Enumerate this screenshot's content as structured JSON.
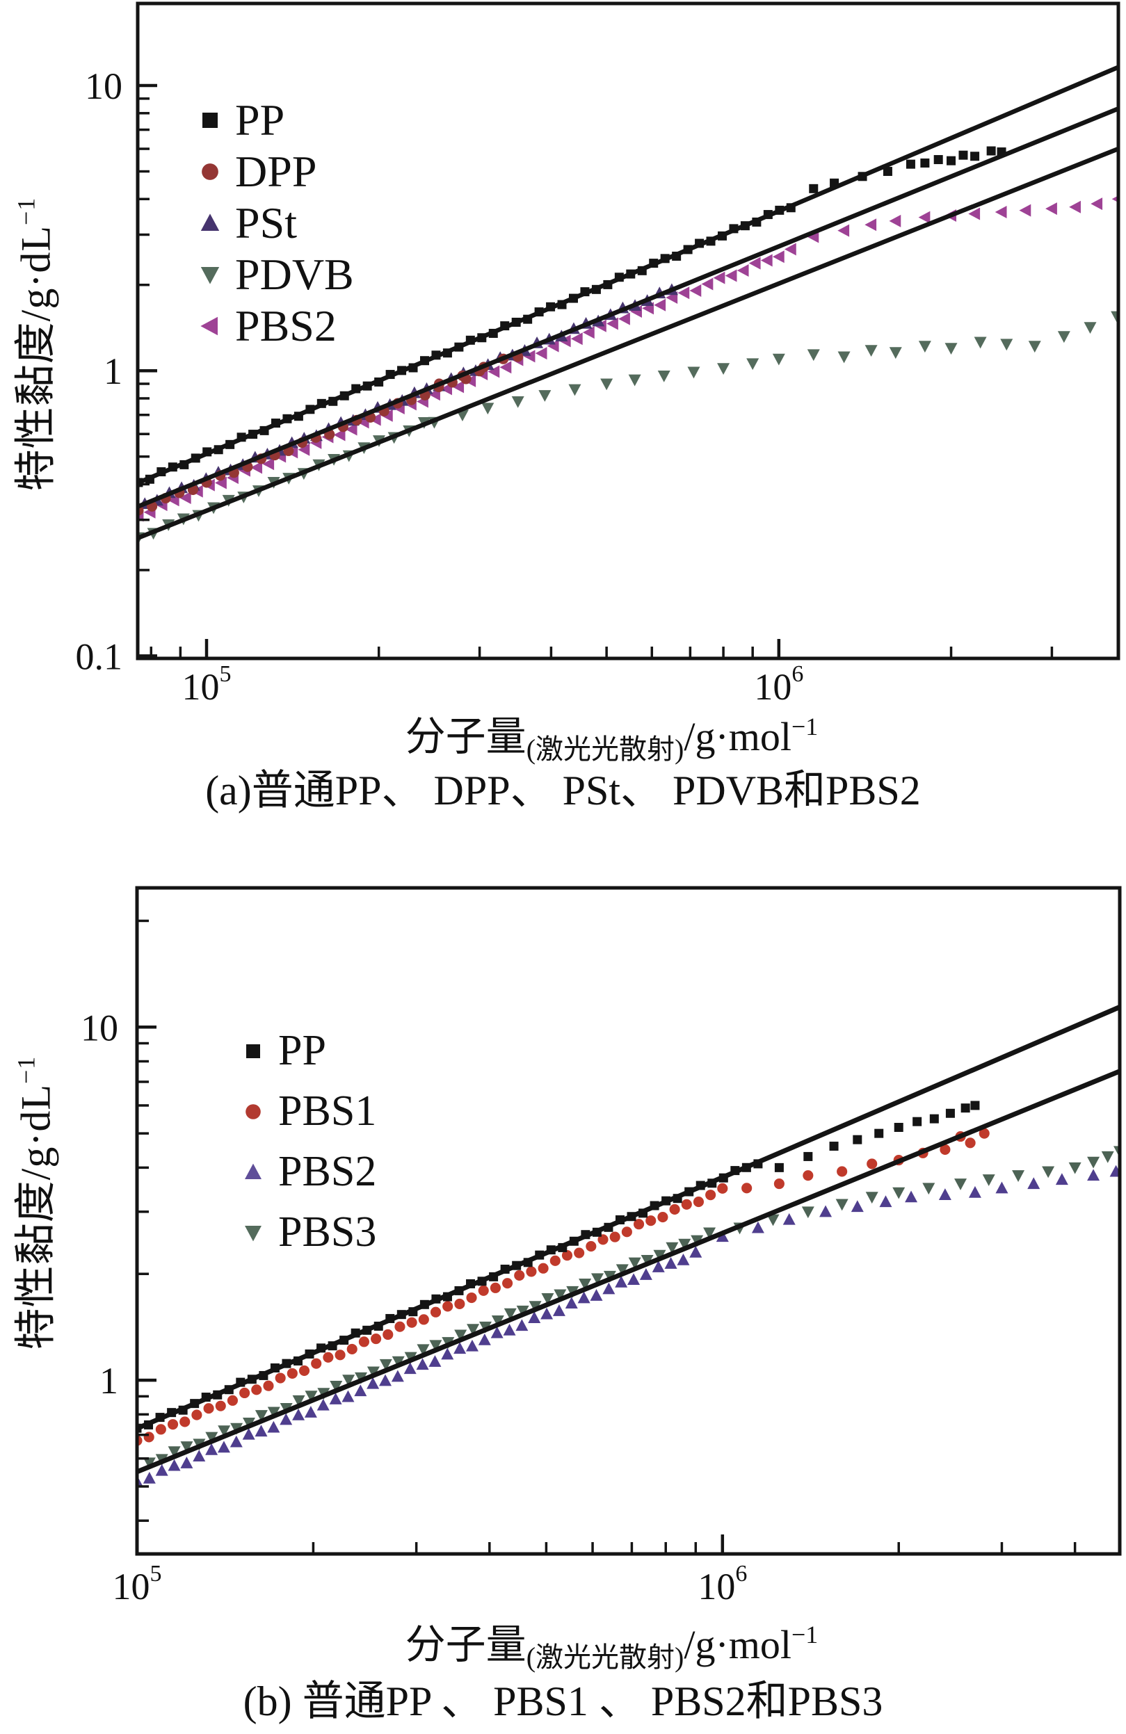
{
  "page": {
    "background": "#ffffff",
    "text_color": "#111111"
  },
  "chart_data": [
    {
      "id": "a",
      "type": "scatter",
      "caption": "(a)普通PP、 DPP、 PSt、 PDVB和PBS2",
      "xlabel": {
        "main": "分子量",
        "sub": "(激光光散射)",
        "unit": "/g·mol",
        "unit_exp": "−1"
      },
      "ylabel": {
        "main": "特性黏度/g·dL",
        "exp": "−1"
      },
      "x_axis": {
        "scale": "log",
        "min": 75800,
        "max": 3920000,
        "grid": false,
        "labeled_ticks": [
          {
            "value": 100000,
            "base": "10",
            "exp": "5"
          },
          {
            "value": 1000000,
            "base": "10",
            "exp": "6"
          }
        ]
      },
      "y_axis": {
        "scale": "log",
        "min": 0.098,
        "max": 19.4,
        "grid": false,
        "labeled_ticks": [
          {
            "value": 10,
            "label": "10"
          },
          {
            "value": 1,
            "label": "1"
          },
          {
            "value": 0.1,
            "label": "0.1"
          }
        ]
      },
      "fit_lines": [
        {
          "name": "fit-line-top",
          "color": "#141414",
          "width": 6.5,
          "points": [
            [
              75800,
              0.404
            ],
            [
              3920000,
              11.6
            ]
          ]
        },
        {
          "name": "fit-line-middle",
          "color": "#141414",
          "width": 6.5,
          "points": [
            [
              75800,
              0.334
            ],
            [
              3920000,
              8.3
            ]
          ]
        },
        {
          "name": "fit-line-bottom",
          "color": "#141414",
          "width": 6.5,
          "points": [
            [
              75800,
              0.259
            ],
            [
              3920000,
              6.0
            ]
          ]
        }
      ],
      "series": [
        {
          "name": "PBS2",
          "marker": "triangle-left",
          "color": "#9e4295",
          "marker_px": 15,
          "powerlaw": {
            "K": 3.27e-05,
            "alpha": 0.815,
            "M_start": 76000,
            "M_end": 1050000,
            "n": 56
          },
          "points": [
            [
              1150000,
              2.95
            ],
            [
              1300000,
              3.1
            ],
            [
              1450000,
              3.25
            ],
            [
              1600000,
              3.35
            ],
            [
              1800000,
              3.45
            ],
            [
              2000000,
              3.5
            ],
            [
              2200000,
              3.55
            ],
            [
              2450000,
              3.6
            ],
            [
              2700000,
              3.65
            ],
            [
              3000000,
              3.7
            ],
            [
              3300000,
              3.75
            ],
            [
              3600000,
              3.85
            ],
            [
              3920000,
              4.0
            ]
          ]
        },
        {
          "name": "PSt",
          "marker": "triangle-up",
          "color": "#46346e",
          "marker_px": 15,
          "powerlaw": {
            "K": 3.52e-05,
            "alpha": 0.815,
            "M_start": 78000,
            "M_end": 650000,
            "n": 44
          },
          "points": []
        },
        {
          "name": "DPP",
          "marker": "circle",
          "color": "#943634",
          "marker_px": 14,
          "powerlaw": {
            "K": 3.41e-05,
            "alpha": 0.815,
            "M_start": 76000,
            "M_end": 300000,
            "n": 26
          },
          "points": [
            [
              255000,
              0.9
            ],
            [
              280000,
              0.96
            ],
            [
              305000,
              1.03
            ],
            [
              330000,
              1.1
            ],
            [
              350000,
              1.12
            ]
          ]
        },
        {
          "name": "PDVB",
          "marker": "triangle-down",
          "color": "#546b5c",
          "marker_px": 15,
          "powerlaw": {
            "K": 3.35e-05,
            "alpha": 0.797,
            "M_start": 76000,
            "M_end": 240000,
            "n": 20
          },
          "points": [
            [
              250000,
              0.66
            ],
            [
              280000,
              0.7
            ],
            [
              310000,
              0.74
            ],
            [
              350000,
              0.78
            ],
            [
              390000,
              0.82
            ],
            [
              440000,
              0.86
            ],
            [
              500000,
              0.9
            ],
            [
              560000,
              0.93
            ],
            [
              630000,
              0.96
            ],
            [
              710000,
              0.99
            ],
            [
              800000,
              1.02
            ],
            [
              900000,
              1.06
            ],
            [
              1000000,
              1.1
            ],
            [
              1150000,
              1.14
            ],
            [
              1300000,
              1.12
            ],
            [
              1450000,
              1.18
            ],
            [
              1600000,
              1.16
            ],
            [
              1800000,
              1.22
            ],
            [
              2000000,
              1.2
            ],
            [
              2250000,
              1.26
            ],
            [
              2500000,
              1.24
            ],
            [
              2800000,
              1.22
            ],
            [
              3150000,
              1.32
            ],
            [
              3500000,
              1.42
            ],
            [
              3900000,
              1.55
            ]
          ]
        },
        {
          "name": "PP",
          "marker": "square",
          "color": "#141414",
          "marker_px": 13,
          "powerlaw": {
            "K": 2.88e-05,
            "alpha": 0.85,
            "M_start": 76000,
            "M_end": 1050000,
            "n": 58
          },
          "points": [
            [
              1150000,
              4.35
            ],
            [
              1250000,
              4.55
            ],
            [
              1400000,
              4.8
            ],
            [
              1550000,
              5.0
            ],
            [
              1700000,
              5.3
            ],
            [
              1800000,
              5.35
            ],
            [
              1900000,
              5.5
            ],
            [
              2000000,
              5.45
            ],
            [
              2100000,
              5.7
            ],
            [
              2200000,
              5.65
            ],
            [
              2350000,
              5.9
            ],
            [
              2450000,
              5.85
            ]
          ]
        }
      ],
      "legend": [
        {
          "label": "PP",
          "marker": "square",
          "color": "#141414"
        },
        {
          "label": "DPP",
          "marker": "circle",
          "color": "#943634"
        },
        {
          "label": "PSt",
          "marker": "triangle-up",
          "color": "#46346e"
        },
        {
          "label": "PDVB",
          "marker": "triangle-down",
          "color": "#546b5c"
        },
        {
          "label": "PBS2",
          "marker": "triangle-left",
          "color": "#9e4295"
        }
      ]
    },
    {
      "id": "b",
      "type": "scatter",
      "caption": "(b) 普通PP 、 PBS1 、 PBS2和PBS3",
      "xlabel": {
        "main": "分子量",
        "sub": "(激光光散射)",
        "unit": "/g·mol",
        "unit_exp": "−1"
      },
      "ylabel": {
        "main": "特性黏度/g·dL",
        "exp": "−1"
      },
      "x_axis": {
        "scale": "log",
        "min": 100000,
        "max": 4770000,
        "grid": false,
        "labeled_ticks": [
          {
            "value": 100000,
            "base": "10",
            "exp": "5"
          },
          {
            "value": 1000000,
            "base": "10",
            "exp": "6"
          }
        ]
      },
      "y_axis": {
        "scale": "log",
        "min": 0.322,
        "max": 24.8,
        "grid": false,
        "labeled_ticks": [
          {
            "value": 10,
            "label": "10"
          },
          {
            "value": 1,
            "label": "1"
          }
        ]
      },
      "fit_lines": [
        {
          "name": "fit-line-top",
          "color": "#141414",
          "width": 7,
          "points": [
            [
              100000,
              0.73
            ],
            [
              4770000,
              11.4
            ]
          ]
        },
        {
          "name": "fit-line-bottom",
          "color": "#141414",
          "width": 7,
          "points": [
            [
              100000,
              0.55
            ],
            [
              4770000,
              7.5
            ]
          ]
        }
      ],
      "series": [
        {
          "name": "PBS3",
          "marker": "triangle-down",
          "color": "#4d6355",
          "marker_px": 15,
          "powerlaw": {
            "K": 0.00023,
            "alpha": 0.678,
            "M_start": 105000,
            "M_end": 950000,
            "n": 46
          },
          "points": [
            [
              1070000,
              2.7
            ],
            [
              1220000,
              2.85
            ],
            [
              1400000,
              3.0
            ],
            [
              1600000,
              3.15
            ],
            [
              1800000,
              3.3
            ],
            [
              2000000,
              3.4
            ],
            [
              2250000,
              3.5
            ],
            [
              2550000,
              3.6
            ],
            [
              2850000,
              3.7
            ],
            [
              3200000,
              3.8
            ],
            [
              3600000,
              3.9
            ],
            [
              4000000,
              4.0
            ],
            [
              4300000,
              4.15
            ],
            [
              4550000,
              4.3
            ],
            [
              4770000,
              4.45
            ]
          ]
        },
        {
          "name": "PBS2",
          "marker": "triangle-up",
          "color": "#4f3e8e",
          "marker_px": 15,
          "powerlaw": {
            "K": 0.00021,
            "alpha": 0.678,
            "M_start": 100000,
            "M_end": 900000,
            "n": 46
          },
          "points": [
            [
              1000000,
              2.55
            ],
            [
              1150000,
              2.7
            ],
            [
              1300000,
              2.85
            ],
            [
              1500000,
              3.0
            ],
            [
              1700000,
              3.1
            ],
            [
              1900000,
              3.2
            ],
            [
              2100000,
              3.3
            ],
            [
              2400000,
              3.35
            ],
            [
              2700000,
              3.4
            ],
            [
              3000000,
              3.5
            ],
            [
              3400000,
              3.6
            ],
            [
              3800000,
              3.7
            ],
            [
              4300000,
              3.8
            ],
            [
              4700000,
              3.9
            ]
          ]
        },
        {
          "name": "PBS1",
          "marker": "circle",
          "color": "#c03a2b",
          "marker_px": 14,
          "powerlaw": {
            "K": 0.00019,
            "alpha": 0.71,
            "M_start": 100000,
            "M_end": 1000000,
            "n": 50
          },
          "points": [
            [
              1100000,
              3.5
            ],
            [
              1250000,
              3.6
            ],
            [
              1400000,
              3.8
            ],
            [
              1600000,
              3.9
            ],
            [
              1800000,
              4.1
            ],
            [
              2000000,
              4.2
            ],
            [
              2200000,
              4.4
            ],
            [
              2400000,
              4.5
            ],
            [
              2550000,
              4.9
            ],
            [
              2650000,
              4.7
            ],
            [
              2800000,
              5.0
            ]
          ]
        },
        {
          "name": "PP",
          "marker": "square",
          "color": "#141414",
          "marker_px": 13,
          "powerlaw": {
            "K": 0.000206,
            "alpha": 0.71,
            "M_start": 100000,
            "M_end": 1150000,
            "n": 55
          },
          "points": [
            [
              1250000,
              4.0
            ],
            [
              1400000,
              4.3
            ],
            [
              1550000,
              4.6
            ],
            [
              1700000,
              4.8
            ],
            [
              1850000,
              5.0
            ],
            [
              2000000,
              5.2
            ],
            [
              2150000,
              5.4
            ],
            [
              2300000,
              5.5
            ],
            [
              2450000,
              5.7
            ],
            [
              2600000,
              5.9
            ],
            [
              2700000,
              6.0
            ]
          ]
        }
      ],
      "legend": [
        {
          "label": "PP",
          "marker": "square",
          "color": "#141414"
        },
        {
          "label": "PBS1",
          "marker": "circle",
          "color": "#b23a30"
        },
        {
          "label": "PBS2",
          "marker": "triangle-up",
          "color": "#5f4e99"
        },
        {
          "label": "PBS3",
          "marker": "triangle-down",
          "color": "#546b5c"
        }
      ]
    }
  ]
}
